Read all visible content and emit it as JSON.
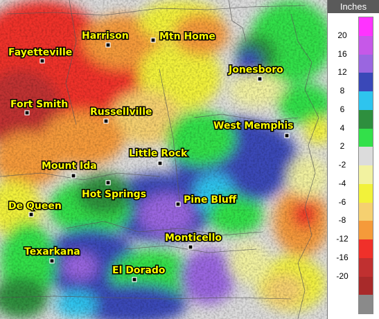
{
  "legend": {
    "title": "Inches",
    "ticks": [
      "20",
      "16",
      "12",
      "8",
      "6",
      "4",
      "2",
      "-2",
      "-4",
      "-6",
      "-8",
      "-12",
      "-16",
      "-20"
    ],
    "colors": [
      "#ff33ff",
      "#c658e8",
      "#9a66e0",
      "#3a48b8",
      "#2ec4ee",
      "#2e8f3e",
      "#33e04a",
      "#dcdcdc",
      "#f2f2a0",
      "#f2f23a",
      "#f5d070",
      "#f59a3a",
      "#f0302a",
      "#c03030",
      "#a82a2a",
      "#8a8a8a"
    ]
  },
  "cities": [
    {
      "name": "Fayetteville",
      "x": 0.0,
      "y": 0.0
    },
    {
      "name": "Harrison"
    },
    {
      "name": "Mtn Home"
    },
    {
      "name": "Jonesboro"
    },
    {
      "name": "Fort Smith"
    },
    {
      "name": "Russellville"
    },
    {
      "name": "West Memphis"
    },
    {
      "name": "Little Rock"
    },
    {
      "name": "Mount Ida"
    },
    {
      "name": "Hot Springs"
    },
    {
      "name": "Pine Bluff"
    },
    {
      "name": "De Queen"
    },
    {
      "name": "Monticello"
    },
    {
      "name": "Texarkana"
    },
    {
      "name": "El Dorado"
    }
  ]
}
